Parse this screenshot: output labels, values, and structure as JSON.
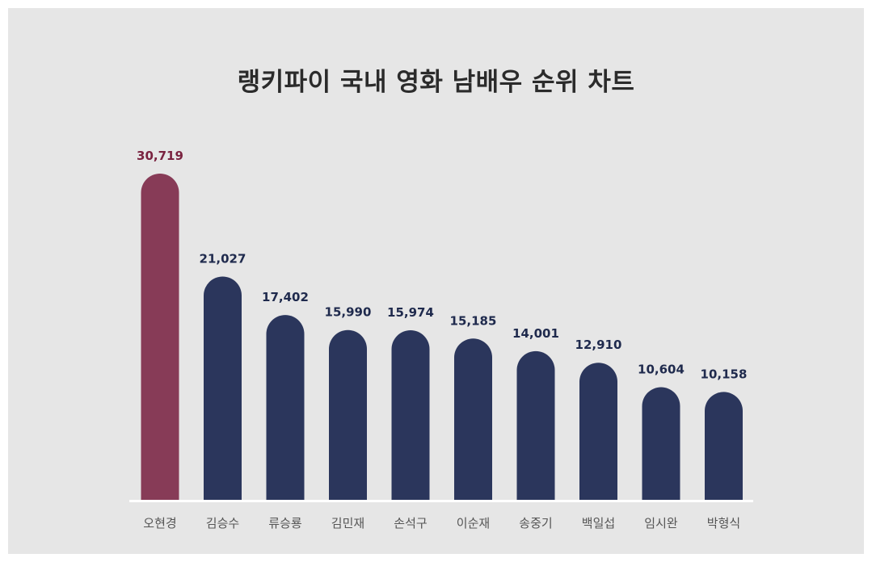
{
  "colors": {
    "background": "#e6e6e6",
    "highlight": "#873b57",
    "bar": "#2b365c",
    "highlight_label": "#7a2340",
    "value_label": "#1f2a4d",
    "category_label": "#555555",
    "baseline": "#ffffff"
  },
  "chart_data": {
    "type": "bar",
    "title": "랭키파이 국내 영화 남배우 순위 차트",
    "categories": [
      "오현경",
      "김승수",
      "류승룡",
      "김민재",
      "손석구",
      "이순재",
      "송중기",
      "백일섭",
      "임시완",
      "박형식"
    ],
    "values": [
      30719,
      21027,
      17402,
      15990,
      15974,
      15185,
      14001,
      12910,
      10604,
      10158
    ],
    "value_labels": [
      "30,719",
      "21,027",
      "17,402",
      "15,990",
      "15,974",
      "15,185",
      "14,001",
      "12,910",
      "10,604",
      "10,158"
    ],
    "highlight_index": 0,
    "xlabel": "",
    "ylabel": "",
    "ylim": [
      0,
      30719
    ],
    "grid": false,
    "legend": "none"
  }
}
